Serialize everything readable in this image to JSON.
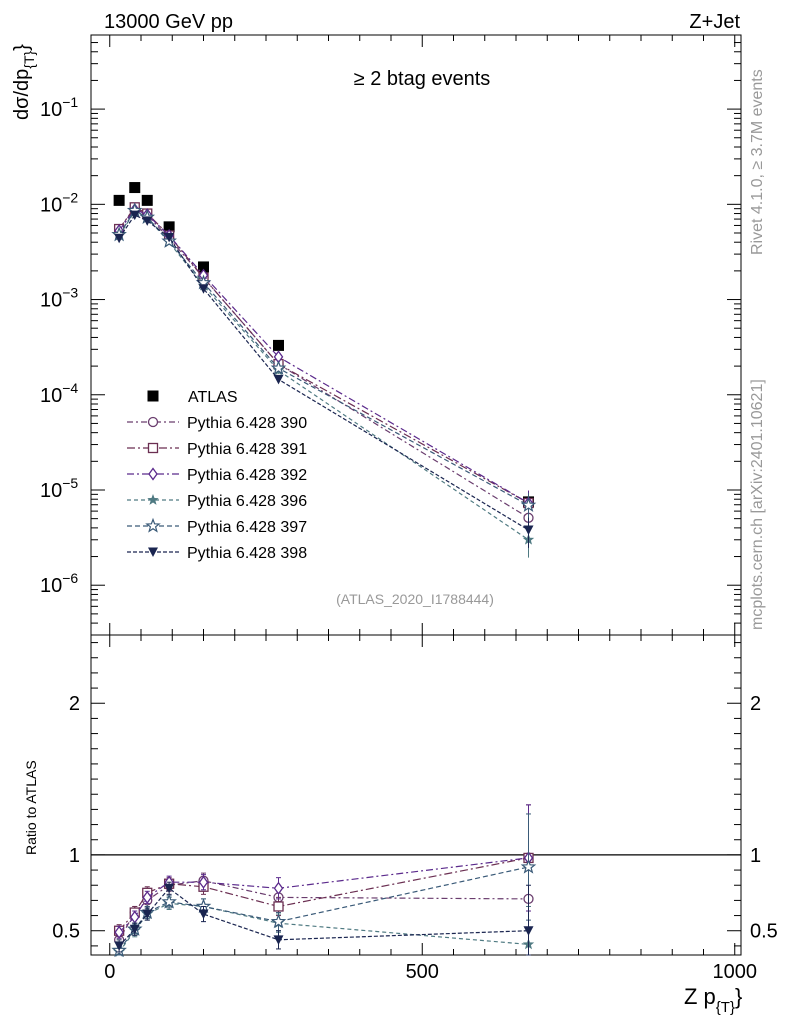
{
  "header": {
    "energy_label": "13000 GeV pp",
    "process_label": "Z+Jet",
    "selection_label": "≥ 2 btag events",
    "rivet_label": "Rivet 4.1.0, ≥ 3.7M events",
    "mcplots_label": "mcplots.cern.ch [arXiv:2401.10621]",
    "analysis_label": "(ATLAS_2020_I1788444)"
  },
  "colors": {
    "data": "#000000",
    "p390": "#6a3d6e",
    "p391": "#6b2f52",
    "p392": "#5b2a8c",
    "p396": "#4f7a82",
    "p397": "#3a5a78",
    "p398": "#1a2550",
    "gray_text": "#999999"
  },
  "chart_data": [
    {
      "type": "scatter",
      "title": "≥ 2 btag events",
      "xlabel": "Z p_T",
      "ylabel": "dσ/dp_T",
      "yscale": "log",
      "xlim": [
        -30,
        1010
      ],
      "ylim": [
        3e-07,
        0.6
      ],
      "y_ticks": [
        {
          "value": 0.1,
          "base": "10",
          "exp": "−1"
        },
        {
          "value": 0.01,
          "base": "10",
          "exp": "−2"
        },
        {
          "value": 0.001,
          "base": "10",
          "exp": "−3"
        },
        {
          "value": 0.0001,
          "base": "10",
          "exp": "−4"
        },
        {
          "value": 1e-05,
          "base": "10",
          "exp": "−5"
        },
        {
          "value": 1e-06,
          "base": "10",
          "exp": "−6"
        }
      ],
      "legend_position": "middle-left",
      "series": [
        {
          "name": "ATLAS",
          "marker": "square-filled",
          "color_key": "data",
          "line": "none",
          "points": [
            [
              15,
              0.011
            ],
            [
              40,
              0.015
            ],
            [
              60,
              0.011
            ],
            [
              95,
              0.0058
            ],
            [
              150,
              0.0022
            ],
            [
              270,
              0.00033
            ],
            [
              670,
              7.5e-06
            ]
          ]
        },
        {
          "name": "Pythia 6.428 390",
          "marker": "circle-open",
          "color_key": "p390",
          "dash": "6,3,2,3",
          "points": [
            [
              15,
              0.0055
            ],
            [
              40,
              0.0091
            ],
            [
              60,
              0.0077
            ],
            [
              95,
              0.0044
            ],
            [
              150,
              0.0017
            ],
            [
              270,
              0.00021
            ],
            [
              670,
              5.1e-06
            ]
          ],
          "errors": [
            0.09,
            0.05,
            0.05,
            0.05,
            0.06,
            0.08,
            0.35
          ]
        },
        {
          "name": "Pythia 6.428 391",
          "marker": "square-open",
          "color_key": "p391",
          "dash": "8,3,2,3",
          "points": [
            [
              15,
              0.0055
            ],
            [
              40,
              0.0093
            ],
            [
              60,
              0.008
            ],
            [
              95,
              0.0047
            ],
            [
              150,
              0.0017
            ],
            [
              270,
              0.00021
            ],
            [
              670,
              7.3e-06
            ]
          ],
          "errors": [
            0.09,
            0.05,
            0.05,
            0.05,
            0.06,
            0.08,
            0.35
          ]
        },
        {
          "name": "Pythia 6.428 392",
          "marker": "diamond-open",
          "color_key": "p392",
          "dash": "7,3,2,3",
          "points": [
            [
              15,
              0.0053
            ],
            [
              40,
              0.0088
            ],
            [
              60,
              0.0078
            ],
            [
              95,
              0.0047
            ],
            [
              150,
              0.0018
            ],
            [
              270,
              0.00025
            ],
            [
              670,
              7.3e-06
            ]
          ],
          "errors": [
            0.09,
            0.05,
            0.05,
            0.05,
            0.06,
            0.08,
            0.35
          ]
        },
        {
          "name": "Pythia 6.428 396",
          "marker": "star-filled",
          "color_key": "p396",
          "dash": "4,3",
          "points": [
            [
              15,
              0.0047
            ],
            [
              40,
              0.0084
            ],
            [
              60,
              0.0072
            ],
            [
              95,
              0.004
            ],
            [
              150,
              0.0014
            ],
            [
              270,
              0.00018
            ],
            [
              670,
              3e-06
            ]
          ],
          "errors": [
            0.09,
            0.05,
            0.05,
            0.05,
            0.06,
            0.08,
            0.35
          ]
        },
        {
          "name": "Pythia 6.428 397",
          "marker": "star-open",
          "color_key": "p397",
          "dash": "5,3",
          "points": [
            [
              15,
              0.0048
            ],
            [
              40,
              0.0086
            ],
            [
              60,
              0.0073
            ],
            [
              95,
              0.0041
            ],
            [
              150,
              0.0015
            ],
            [
              270,
              0.00019
            ],
            [
              670,
              6.9e-06
            ]
          ],
          "errors": [
            0.09,
            0.05,
            0.05,
            0.05,
            0.06,
            0.08,
            0.35
          ]
        },
        {
          "name": "Pythia 6.428 398",
          "marker": "triangle-down-filled",
          "color_key": "p398",
          "dash": "4,2",
          "points": [
            [
              15,
              0.0044
            ],
            [
              40,
              0.0077
            ],
            [
              60,
              0.0067
            ],
            [
              95,
              0.0045
            ],
            [
              150,
              0.0013
            ],
            [
              270,
              0.000145
            ],
            [
              670,
              3.8e-06
            ]
          ],
          "errors": [
            0.09,
            0.05,
            0.05,
            0.05,
            0.06,
            0.08,
            0.35
          ]
        }
      ]
    },
    {
      "type": "scatter",
      "xlabel": "Z p_T",
      "ylabel": "Ratio to ATLAS",
      "xlim": [
        -30,
        1010
      ],
      "ylim": [
        0.34,
        2.45
      ],
      "x_ticks": [
        0,
        500,
        1000
      ],
      "y_ticks": [
        0.5,
        1,
        2
      ],
      "y_tick_labels": [
        "0.5",
        "1",
        "2"
      ],
      "reference_line": 1,
      "series": [
        {
          "name": "Pythia 6.428 390",
          "marker": "circle-open",
          "color_key": "p390",
          "dash": "6,3,2,3",
          "points": [
            [
              15,
              0.44
            ],
            [
              40,
              0.62
            ],
            [
              60,
              0.7
            ],
            [
              95,
              0.8
            ],
            [
              150,
              0.83
            ],
            [
              270,
              0.72
            ],
            [
              670,
              0.71
            ]
          ],
          "errors": [
            0.04,
            0.04,
            0.04,
            0.04,
            0.05,
            0.06,
            0.3
          ]
        },
        {
          "name": "Pythia 6.428 391",
          "marker": "square-open",
          "color_key": "p391",
          "dash": "8,3,2,3",
          "points": [
            [
              15,
              0.5
            ],
            [
              40,
              0.62
            ],
            [
              60,
              0.75
            ],
            [
              95,
              0.81
            ],
            [
              150,
              0.79
            ],
            [
              270,
              0.66
            ],
            [
              670,
              0.98
            ]
          ],
          "errors": [
            0.04,
            0.04,
            0.04,
            0.04,
            0.05,
            0.06,
            0.35
          ]
        },
        {
          "name": "Pythia 6.428 392",
          "marker": "diamond-open",
          "color_key": "p392",
          "dash": "7,3,2,3",
          "points": [
            [
              15,
              0.49
            ],
            [
              40,
              0.59
            ],
            [
              60,
              0.72
            ],
            [
              95,
              0.82
            ],
            [
              150,
              0.82
            ],
            [
              270,
              0.78
            ],
            [
              670,
              0.98
            ]
          ],
          "errors": [
            0.04,
            0.04,
            0.04,
            0.04,
            0.05,
            0.07,
            0.35
          ]
        },
        {
          "name": "Pythia 6.428 396",
          "marker": "star-filled",
          "color_key": "p396",
          "dash": "4,3",
          "points": [
            [
              15,
              0.36
            ],
            [
              40,
              0.5
            ],
            [
              60,
              0.61
            ],
            [
              95,
              0.68
            ],
            [
              150,
              0.66
            ],
            [
              270,
              0.55
            ],
            [
              670,
              0.41
            ]
          ],
          "errors": [
            0.04,
            0.04,
            0.04,
            0.04,
            0.05,
            0.06,
            0.25
          ]
        },
        {
          "name": "Pythia 6.428 397",
          "marker": "star-open",
          "color_key": "p397",
          "dash": "5,3",
          "points": [
            [
              15,
              0.37
            ],
            [
              40,
              0.51
            ],
            [
              60,
              0.62
            ],
            [
              95,
              0.69
            ],
            [
              150,
              0.66
            ],
            [
              270,
              0.56
            ],
            [
              670,
              0.92
            ]
          ],
          "errors": [
            0.04,
            0.04,
            0.04,
            0.04,
            0.05,
            0.06,
            0.35
          ]
        },
        {
          "name": "Pythia 6.428 398",
          "marker": "triangle-down-filled",
          "color_key": "p398",
          "dash": "4,2",
          "points": [
            [
              15,
              0.4
            ],
            [
              40,
              0.51
            ],
            [
              60,
              0.61
            ],
            [
              95,
              0.78
            ],
            [
              150,
              0.61
            ],
            [
              270,
              0.44
            ],
            [
              670,
              0.5
            ]
          ],
          "errors": [
            0.04,
            0.04,
            0.04,
            0.04,
            0.05,
            0.06,
            0.3
          ]
        }
      ]
    }
  ]
}
